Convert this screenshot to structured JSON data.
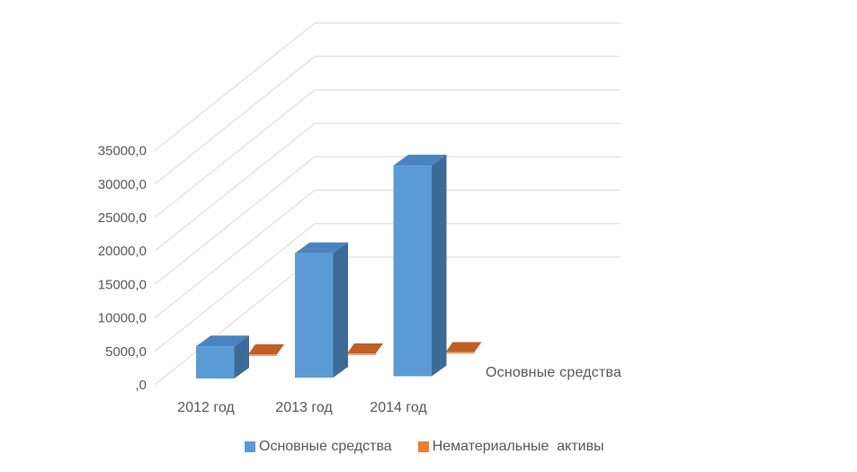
{
  "chart_data": {
    "type": "bar",
    "variant": "3d-perspective",
    "title": "",
    "categories": [
      "2012 год",
      "2013 год",
      "2014 год"
    ],
    "series": [
      {
        "name": "Основные средства",
        "values": [
          4800,
          18600,
          31500
        ],
        "color": "#5B9BD5"
      },
      {
        "name": "Нематериальные  активы",
        "values": [
          0,
          0,
          0
        ],
        "color": "#ED7D31"
      }
    ],
    "value_axis": {
      "min": 0,
      "max": 35000,
      "step": 5000,
      "tick_labels": [
        ",0",
        "5000,0",
        "10000,0",
        "15000,0",
        "20000,0",
        "25000,0",
        "30000,0",
        "35000,0"
      ]
    },
    "depth_axis_label": "Основные средства",
    "legend": {
      "position": "bottom",
      "entries": [
        "Основные средства",
        "Нематериальные  активы"
      ]
    },
    "grid": true
  },
  "colors": {
    "background": "#FFFFFF",
    "bar_front": "#5B9BD5",
    "bar_top": "#4A84C0",
    "bar_side": "#3D6B98",
    "tile_top": "#C05F26",
    "tile_front_edge": "#E6A578",
    "legend_blue": "#5B9BD5",
    "legend_orange": "#ED7D31",
    "gridline": "#D9D9D9",
    "text": "#595959"
  }
}
